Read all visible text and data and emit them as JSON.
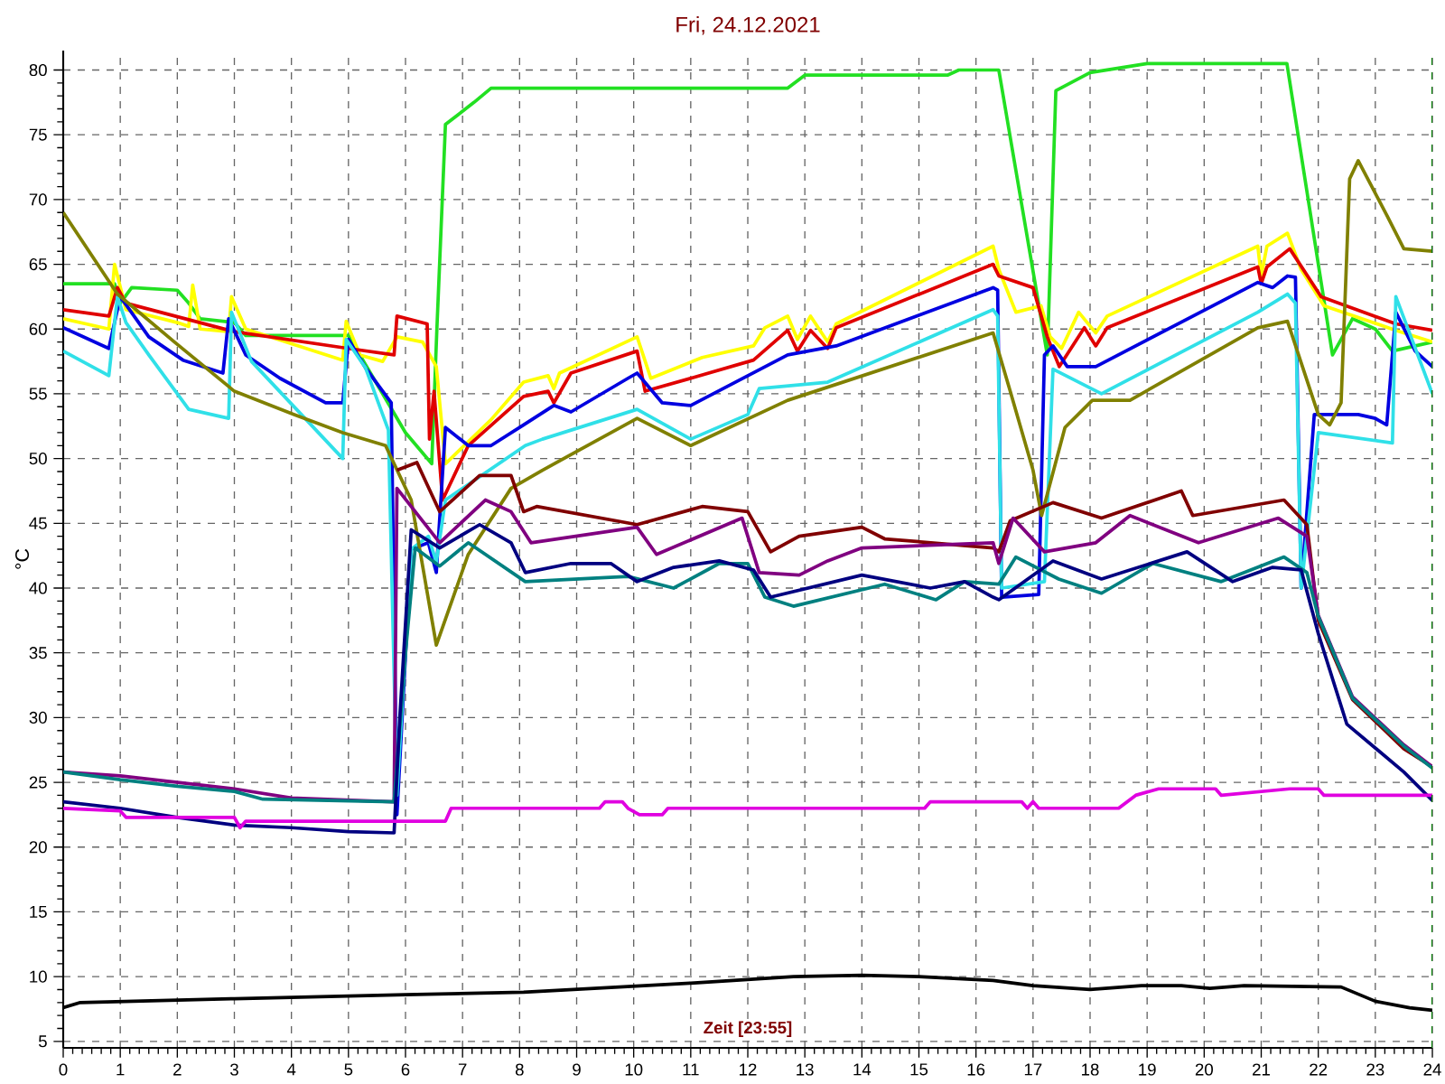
{
  "chart_data": {
    "type": "line",
    "title": "Fri, 24.12.2021",
    "xlabel": "Zeit [23:55]",
    "ylabel": "°C",
    "xlim": [
      0,
      24
    ],
    "ylim": [
      4.5,
      81.5
    ],
    "xticks": [
      0,
      1,
      2,
      3,
      4,
      5,
      6,
      7,
      8,
      9,
      10,
      11,
      12,
      13,
      14,
      15,
      16,
      17,
      18,
      19,
      20,
      21,
      22,
      23,
      24
    ],
    "yticks": [
      5,
      10,
      15,
      20,
      25,
      30,
      35,
      40,
      45,
      50,
      55,
      60,
      65,
      70,
      75,
      80
    ],
    "grid": true,
    "ref_lines": [
      {
        "axis": "x",
        "value": 24,
        "color": "#008000",
        "line_style": "dashed"
      }
    ],
    "series": [
      {
        "color": "#22e022",
        "x": [
          0,
          0.9,
          1.0,
          1.2,
          2.0,
          2.2,
          2.4,
          3.0,
          3.2,
          5.0,
          5.2,
          5.6,
          6.0,
          6.46,
          6.55,
          6.7,
          7.2,
          7.5,
          8.2,
          12.7,
          13.0,
          15.5,
          15.7,
          16.4,
          17.25,
          17.4,
          18.0,
          19.0,
          21.45,
          22.25,
          22.6,
          23.0,
          23.3,
          24
        ],
        "values": [
          63.5,
          63.5,
          62,
          63.2,
          63,
          62,
          60.8,
          60.5,
          59.5,
          59.5,
          58,
          55,
          52,
          49.6,
          60,
          75.8,
          77.5,
          78.6,
          78.6,
          78.6,
          79.6,
          79.6,
          80,
          80,
          58,
          78.4,
          79.8,
          80.5,
          80.5,
          58,
          60.8,
          60,
          58.3,
          59
        ]
      },
      {
        "color": "#ffff00",
        "x": [
          0,
          0.8,
          0.9,
          1.1,
          2.0,
          2.2,
          2.27,
          2.4,
          2.9,
          2.95,
          3.2,
          4.9,
          4.96,
          5.2,
          5.6,
          5.85,
          6.3,
          6.54,
          6.7,
          7.5,
          8.07,
          8.5,
          8.6,
          8.7,
          10.06,
          10.3,
          11.2,
          12.1,
          12.3,
          12.7,
          12.87,
          13.1,
          13.4,
          13.55,
          16.3,
          16.4,
          16.7,
          17.14,
          17.3,
          17.5,
          17.8,
          18.1,
          18.3,
          20.94,
          21.0,
          21.1,
          21.46,
          21.7,
          22.1,
          23.36,
          24
        ],
        "values": [
          60.8,
          60,
          65,
          61.5,
          60.5,
          60.2,
          63.4,
          60,
          59.8,
          62.5,
          60,
          57.6,
          60.6,
          58,
          57.5,
          59.4,
          59,
          57.1,
          49.6,
          53,
          55.9,
          56.4,
          55.4,
          56.6,
          59.4,
          56.2,
          57.8,
          58.7,
          60.1,
          61,
          59.2,
          61,
          59,
          60.4,
          66.4,
          64.6,
          61.3,
          61.8,
          59.4,
          58.5,
          61.3,
          59.7,
          61,
          66.4,
          64.1,
          66.4,
          67.4,
          64.6,
          61.8,
          59.9,
          59
        ]
      },
      {
        "color": "#e00000",
        "x": [
          0,
          0.8,
          0.95,
          1.1,
          3.0,
          5.0,
          5.8,
          5.85,
          6.38,
          6.42,
          6.5,
          6.65,
          7.1,
          8.07,
          8.5,
          8.6,
          8.9,
          10.06,
          10.2,
          11.0,
          12.1,
          12.7,
          12.87,
          13.1,
          13.4,
          13.55,
          16.3,
          16.4,
          17.0,
          17.25,
          17.46,
          17.9,
          18.1,
          18.3,
          20.94,
          21.0,
          21.1,
          21.5,
          22.05,
          23.36,
          24
        ],
        "values": [
          61.5,
          61,
          63.2,
          62,
          59.8,
          58.5,
          58,
          61,
          60.4,
          51.5,
          55.2,
          46.8,
          51,
          54.8,
          55.2,
          54.3,
          56.6,
          58.3,
          55.2,
          56.2,
          57.6,
          59.9,
          58.3,
          59.9,
          58.5,
          60.1,
          65,
          64.1,
          63.2,
          59.4,
          57.1,
          60.1,
          58.7,
          60.1,
          64.8,
          63.5,
          64.8,
          66.2,
          62.5,
          60.4,
          59.9
        ]
      },
      {
        "color": "#0000e0",
        "x": [
          0,
          0.8,
          1.0,
          1.5,
          2.1,
          2.8,
          2.9,
          3.2,
          3.8,
          4.6,
          4.9,
          5.0,
          5.3,
          5.75,
          5.85,
          6.1,
          6.4,
          6.54,
          6.7,
          7.1,
          7.5,
          8.07,
          8.6,
          8.9,
          9.9,
          10.06,
          10.5,
          11.0,
          12.7,
          13.55,
          16.3,
          16.38,
          16.45,
          17.1,
          17.2,
          17.35,
          17.6,
          18.1,
          20.94,
          21.2,
          21.46,
          21.6,
          21.7,
          21.93,
          22.7,
          23.0,
          23.2,
          23.36,
          23.7,
          24
        ],
        "values": [
          60.1,
          58.5,
          62.5,
          59.4,
          57.6,
          56.6,
          60.8,
          58,
          56.2,
          54.3,
          54.3,
          59.2,
          57,
          54.3,
          22.5,
          43,
          43.5,
          41.2,
          52.4,
          51,
          51,
          52.6,
          54.1,
          53.6,
          56.2,
          56.6,
          54.3,
          54.1,
          58,
          58.7,
          63.2,
          63,
          39.3,
          39.5,
          58,
          58.7,
          57.1,
          57.1,
          63.6,
          63.2,
          64.1,
          64,
          40,
          53.4,
          53.4,
          53.1,
          52.6,
          61.3,
          58.3,
          57.1
        ]
      },
      {
        "color": "#30e0e8",
        "x": [
          0,
          0.8,
          0.95,
          1.1,
          1.5,
          2.2,
          2.9,
          2.95,
          3.3,
          4.9,
          4.96,
          5.3,
          5.7,
          5.85,
          6.1,
          6.4,
          6.54,
          6.7,
          8.1,
          8.4,
          10.06,
          11.0,
          12.0,
          12.2,
          13.4,
          16.3,
          16.38,
          16.45,
          17.2,
          17.35,
          18.2,
          20.94,
          21.46,
          21.6,
          21.7,
          22.0,
          23.3,
          23.36,
          24
        ],
        "values": [
          58.3,
          56.4,
          62.5,
          60.5,
          58,
          53.8,
          53.1,
          61.3,
          57.5,
          50,
          59.2,
          57,
          52.2,
          24,
          43,
          44,
          42,
          46.8,
          51,
          51.5,
          53.8,
          51.5,
          53.4,
          55.4,
          55.9,
          61.5,
          61,
          40,
          40.5,
          56.9,
          55,
          61.3,
          62.7,
          62,
          40,
          52,
          51.2,
          62.5,
          55
        ]
      },
      {
        "color": "#808000",
        "x": [
          0,
          0.95,
          1.95,
          3.0,
          4.05,
          4.9,
          5.65,
          6.1,
          6.54,
          7.1,
          7.85,
          8.4,
          10.06,
          11.0,
          12.7,
          16.3,
          16.6,
          17.0,
          17.15,
          17.56,
          18.04,
          18.7,
          20.94,
          21.46,
          22.0,
          22.2,
          22.4,
          22.55,
          22.7,
          23.2,
          23.5,
          24
        ],
        "values": [
          69,
          62.7,
          59,
          55.2,
          53.4,
          52,
          51,
          46.8,
          35.6,
          42.6,
          47.7,
          49.1,
          53.1,
          51,
          54.5,
          59.7,
          55.2,
          49.1,
          45.6,
          52.4,
          54.5,
          54.5,
          60.1,
          60.6,
          53.4,
          52.6,
          54.3,
          71.6,
          73,
          68.8,
          66.2,
          66
        ]
      },
      {
        "color": "#800000",
        "x": [
          5.85,
          6.2,
          6.6,
          7.3,
          7.85,
          8.07,
          8.3,
          10.06,
          11.2,
          12.0,
          12.4,
          12.9,
          14.0,
          14.4,
          16.3,
          16.4,
          16.6,
          17.35,
          18.2,
          19.6,
          19.8,
          21.4,
          21.8,
          22.0,
          22.6,
          23.5,
          24
        ],
        "values": [
          49.1,
          49.7,
          45.9,
          48.7,
          48.7,
          45.9,
          46.3,
          44.9,
          46.3,
          45.9,
          42.8,
          44,
          44.7,
          43.8,
          43.1,
          42.8,
          45.2,
          46.6,
          45.4,
          47.5,
          45.6,
          46.8,
          44.9,
          37.5,
          31.4,
          27.6,
          26.2
        ]
      },
      {
        "color": "#800080",
        "x": [
          0,
          1,
          3,
          4,
          5.8,
          5.85,
          6.6,
          7.4,
          7.85,
          8.2,
          10.06,
          10.4,
          11.9,
          12.2,
          12.9,
          13.4,
          14.0,
          16.3,
          16.4,
          16.65,
          17.2,
          18.1,
          18.7,
          19.9,
          21.3,
          21.8,
          22.0,
          22.6,
          23.5,
          24
        ],
        "values": [
          25.8,
          25.5,
          24.5,
          23.8,
          23.5,
          47.7,
          43.5,
          46.8,
          45.9,
          43.5,
          44.7,
          42.6,
          45.4,
          41.2,
          41,
          42.1,
          43.1,
          43.5,
          41.9,
          45.4,
          42.8,
          43.5,
          45.6,
          43.5,
          45.4,
          44,
          37.9,
          31.6,
          27.9,
          26.2
        ]
      },
      {
        "color": "#008080",
        "x": [
          0,
          1,
          2,
          3,
          3.5,
          5.8,
          6.0,
          6.17,
          6.6,
          7.1,
          8.1,
          9.9,
          10.7,
          11.5,
          12.0,
          12.3,
          12.8,
          14.4,
          15.3,
          15.8,
          16.4,
          16.7,
          17.45,
          18.2,
          19.1,
          20.3,
          21.4,
          21.8,
          22.0,
          22.6,
          23.5,
          24
        ],
        "values": [
          25.8,
          25.2,
          24.7,
          24.3,
          23.7,
          23.5,
          35,
          43.1,
          41.7,
          43.5,
          40.5,
          40.9,
          40,
          41.9,
          41.9,
          39.3,
          38.6,
          40.3,
          39.1,
          40.5,
          40.3,
          42.4,
          40.7,
          39.6,
          41.9,
          40.5,
          42.4,
          41.2,
          37.8,
          31.5,
          27.8,
          26.1
        ]
      },
      {
        "color": "#000080",
        "x": [
          0,
          1,
          2,
          3,
          4,
          5,
          5.8,
          5.9,
          6.1,
          6.6,
          7.3,
          7.85,
          8.1,
          8.9,
          9.6,
          10.06,
          10.7,
          11.5,
          12.1,
          12.4,
          14.0,
          15.2,
          15.8,
          16.3,
          16.4,
          17.35,
          18.2,
          19.7,
          20.5,
          21.2,
          21.7,
          22.0,
          22.5,
          23.5,
          24
        ],
        "values": [
          23.5,
          23,
          22.3,
          21.7,
          21.5,
          21.2,
          21.1,
          30,
          44.5,
          43.1,
          44.9,
          43.5,
          41.2,
          41.9,
          41.9,
          40.5,
          41.6,
          42.1,
          41.4,
          39.3,
          41,
          40,
          40.5,
          39.3,
          39.1,
          42.1,
          40.7,
          42.8,
          40.5,
          41.6,
          41.4,
          36.5,
          29.5,
          25.8,
          23.6
        ]
      },
      {
        "color": "#e000e0",
        "x": [
          0,
          1,
          1.1,
          3.0,
          3.1,
          3.2,
          3.3,
          6.7,
          6.8,
          9.4,
          9.5,
          9.8,
          9.9,
          10.1,
          10.5,
          10.6,
          15.1,
          15.2,
          16.8,
          16.9,
          17.0,
          17.1,
          17.4,
          18.5,
          18.8,
          19.2,
          20.2,
          20.3,
          21.5,
          22.0,
          22.1,
          24
        ],
        "values": [
          23,
          22.8,
          22.3,
          22.3,
          21.5,
          22,
          22,
          22,
          23,
          23,
          23.5,
          23.5,
          23,
          22.5,
          22.5,
          23,
          23,
          23.5,
          23.5,
          23,
          23.5,
          23,
          23,
          23,
          24,
          24.5,
          24.5,
          24,
          24.5,
          24.5,
          24,
          24
        ]
      },
      {
        "color": "#000000",
        "x": [
          0,
          0.3,
          3,
          6,
          8.07,
          11,
          12.8,
          14,
          15,
          16.3,
          17,
          18,
          18.9,
          19.6,
          20.1,
          20.7,
          22.4,
          23,
          23.6,
          24
        ],
        "values": [
          7.6,
          8,
          8.3,
          8.6,
          8.8,
          9.5,
          10,
          10.1,
          10,
          9.7,
          9.3,
          9,
          9.3,
          9.3,
          9.1,
          9.3,
          9.2,
          8.1,
          7.6,
          7.4
        ]
      }
    ]
  }
}
